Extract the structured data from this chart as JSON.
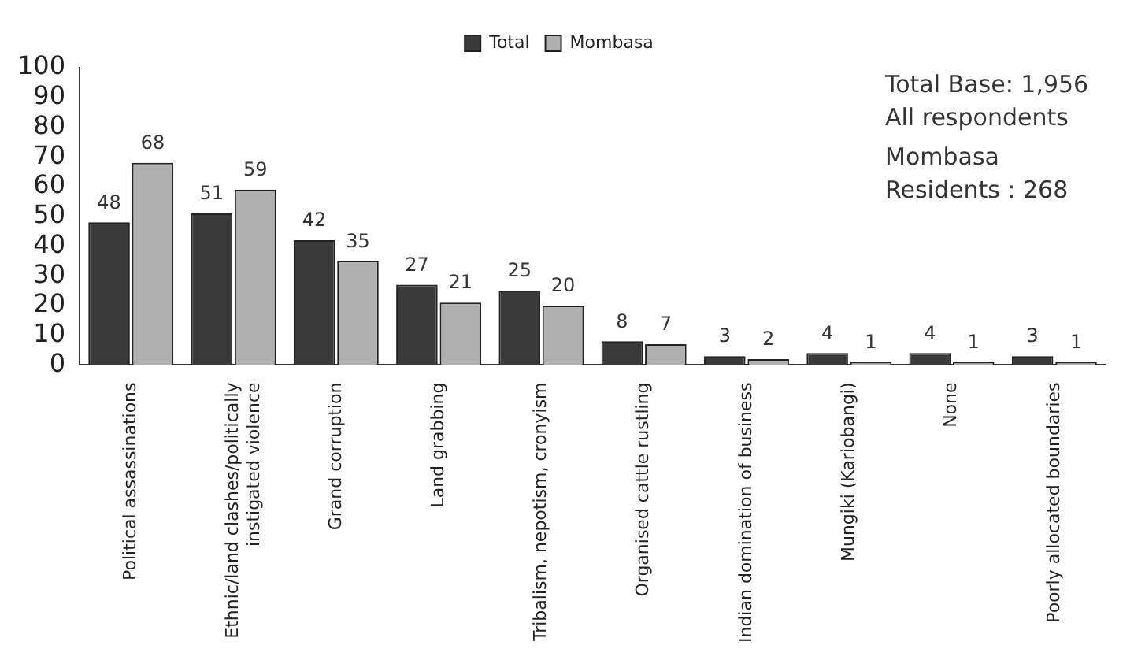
{
  "chart_data": {
    "type": "bar",
    "categories": [
      "Political assassinations",
      "Ethnic/land clashes/politically instigated violence",
      "Grand corruption",
      "Land grabbing",
      "Tribalism, nepotism, cronyism",
      "Organised cattle rustling",
      "Indian domination of business",
      "Mungiki (Kariobangi)",
      "None",
      "Poorly allocated boundaries"
    ],
    "series": [
      {
        "name": "Total",
        "color": "#3a3a3a",
        "values": [
          48,
          51,
          42,
          27,
          25,
          8,
          3,
          4,
          4,
          3
        ]
      },
      {
        "name": "Mombasa",
        "color": "#b0b0b0",
        "values": [
          68,
          59,
          35,
          21,
          20,
          7,
          2,
          1,
          1,
          1
        ]
      }
    ],
    "ylim": [
      0,
      100
    ],
    "yticks": [
      0,
      10,
      20,
      30,
      40,
      50,
      60,
      70,
      80,
      90,
      100
    ],
    "grid": false,
    "legend": "top",
    "data_labels": true,
    "annotations": [
      "Total Base: 1,956",
      "All respondents",
      "Mombasa",
      "Residents : 268"
    ]
  }
}
